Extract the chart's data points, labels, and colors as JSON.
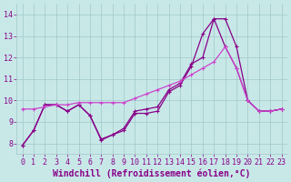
{
  "xlabel": "Windchill (Refroidissement éolien,°C)",
  "background_color": "#c8e8e8",
  "grid_color": "#a0c8c8",
  "line_color_dark": "#880088",
  "line_color_pink": "#cc44cc",
  "xlim": [
    -0.5,
    23.5
  ],
  "ylim": [
    7.5,
    14.5
  ],
  "yticks": [
    8,
    9,
    10,
    11,
    12,
    13,
    14
  ],
  "xticks": [
    0,
    1,
    2,
    3,
    4,
    5,
    6,
    7,
    8,
    9,
    10,
    11,
    12,
    13,
    14,
    15,
    16,
    17,
    18,
    19,
    20,
    21,
    22,
    23
  ],
  "line1_y": [
    7.9,
    8.6,
    9.8,
    9.8,
    9.5,
    9.8,
    9.3,
    8.2,
    8.4,
    8.6,
    9.4,
    9.4,
    9.5,
    10.4,
    10.7,
    11.6,
    13.1,
    13.8,
    13.8,
    12.5,
    10.0,
    9.5,
    9.5,
    9.6
  ],
  "line2_y": [
    7.9,
    8.6,
    9.8,
    9.8,
    9.5,
    9.8,
    9.3,
    8.15,
    8.4,
    8.7,
    9.5,
    9.6,
    9.7,
    10.5,
    10.8,
    11.7,
    12.0,
    13.8,
    12.5,
    11.5,
    10.0,
    9.5,
    9.5,
    9.6
  ],
  "line3_y": [
    9.6,
    9.6,
    9.7,
    9.8,
    9.8,
    9.9,
    9.9,
    9.9,
    9.9,
    9.9,
    10.1,
    10.3,
    10.5,
    10.7,
    10.9,
    11.2,
    11.5,
    11.8,
    12.5,
    11.5,
    10.0,
    9.5,
    9.5,
    9.6
  ],
  "fontsize_tick": 6,
  "fontsize_label": 7
}
